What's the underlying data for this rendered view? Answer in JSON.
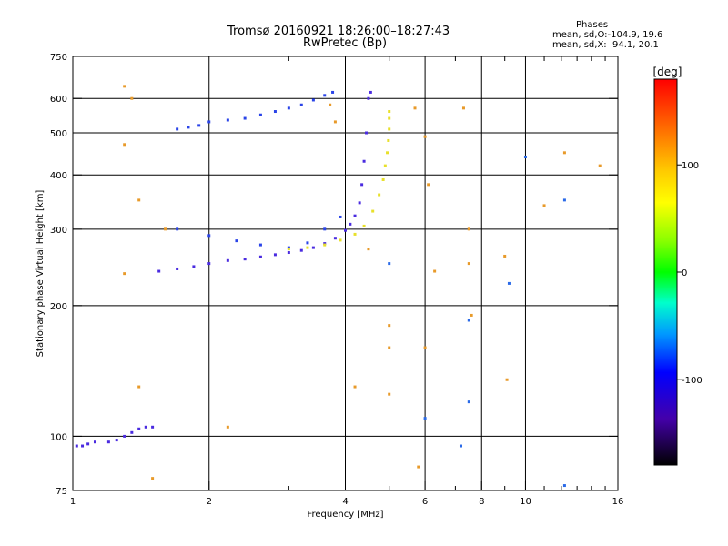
{
  "title": "Tromsø 20160921 18:26:00–18:27:43",
  "subtitle": "RwPretec (Bp)",
  "phases": {
    "heading": "Phases",
    "line_o": "mean, sd,O:-104.9, 19.6",
    "line_x": "mean, sd,X:  94.1, 20.1"
  },
  "chart_data": {
    "type": "scatter",
    "xlabel": "Frequency [MHz]",
    "ylabel": "Stationary phase Virtual Height [km]",
    "xscale": "log",
    "yscale": "log",
    "xlim": [
      1,
      16
    ],
    "ylim": [
      75,
      750
    ],
    "xticks": [
      1,
      2,
      4,
      6,
      8,
      10,
      16
    ],
    "xtick_labels": [
      "1",
      "2",
      "4",
      "6",
      "8",
      "10",
      "16"
    ],
    "xgrid": [
      2,
      4,
      6,
      8,
      10
    ],
    "xminor": [
      3,
      5,
      7,
      9,
      11,
      12,
      13,
      14,
      15
    ],
    "yticks": [
      75,
      100,
      200,
      300,
      400,
      500,
      600,
      750
    ],
    "ytick_labels": [
      "75",
      "100",
      "200",
      "300",
      "400",
      "500",
      "600",
      "750"
    ],
    "ygrid": [
      100,
      200,
      300,
      400,
      500,
      600
    ],
    "grid": true,
    "colorbar": {
      "label": "[deg]",
      "range": [
        -180,
        180
      ],
      "ticks": [
        100,
        0,
        -100
      ],
      "tick_labels": [
        "100",
        "0",
        "-100"
      ]
    },
    "series": [
      {
        "trace": "O-mode lower",
        "color": "#4a2be0",
        "points": [
          [
            1.02,
            95
          ],
          [
            1.05,
            95
          ],
          [
            1.08,
            96
          ],
          [
            1.12,
            97
          ],
          [
            1.2,
            97
          ],
          [
            1.25,
            98
          ],
          [
            1.3,
            100
          ],
          [
            1.35,
            102
          ],
          [
            1.4,
            104
          ],
          [
            1.45,
            105
          ],
          [
            1.5,
            105
          ],
          [
            1.55,
            240
          ],
          [
            1.7,
            243
          ],
          [
            1.85,
            246
          ],
          [
            2.0,
            250
          ],
          [
            2.2,
            254
          ],
          [
            2.4,
            256
          ],
          [
            2.6,
            259
          ],
          [
            2.8,
            262
          ],
          [
            3.0,
            265
          ],
          [
            3.2,
            268
          ],
          [
            3.4,
            272
          ],
          [
            3.6,
            278
          ],
          [
            3.8,
            286
          ],
          [
            4.0,
            298
          ],
          [
            4.1,
            308
          ],
          [
            4.2,
            322
          ],
          [
            4.3,
            345
          ],
          [
            4.35,
            380
          ],
          [
            4.4,
            430
          ],
          [
            4.45,
            500
          ],
          [
            4.5,
            600
          ],
          [
            4.55,
            620
          ]
        ]
      },
      {
        "trace": "O-mode upper",
        "color": "#2a44e8",
        "points": [
          [
            1.7,
            510
          ],
          [
            1.8,
            515
          ],
          [
            1.9,
            520
          ],
          [
            2.0,
            530
          ],
          [
            2.2,
            535
          ],
          [
            2.4,
            540
          ],
          [
            2.6,
            550
          ],
          [
            2.8,
            560
          ],
          [
            3.0,
            570
          ],
          [
            3.2,
            580
          ],
          [
            3.4,
            595
          ],
          [
            3.6,
            610
          ],
          [
            3.75,
            620
          ],
          [
            1.7,
            300
          ],
          [
            2.0,
            290
          ],
          [
            2.3,
            282
          ],
          [
            2.6,
            276
          ],
          [
            3.0,
            272
          ],
          [
            3.3,
            279
          ],
          [
            3.6,
            300
          ],
          [
            3.9,
            320
          ]
        ]
      },
      {
        "trace": "X-mode",
        "color": "#e8e02a",
        "points": [
          [
            3.0,
            270
          ],
          [
            3.3,
            272
          ],
          [
            3.6,
            276
          ],
          [
            3.9,
            283
          ],
          [
            4.2,
            292
          ],
          [
            4.4,
            305
          ],
          [
            4.6,
            330
          ],
          [
            4.75,
            360
          ],
          [
            4.85,
            390
          ],
          [
            4.9,
            420
          ],
          [
            4.95,
            450
          ],
          [
            4.98,
            480
          ],
          [
            5.0,
            510
          ],
          [
            5.0,
            540
          ],
          [
            5.0,
            560
          ]
        ]
      },
      {
        "trace": "scattered",
        "color": "#e89a2a",
        "points": [
          [
            1.3,
            640
          ],
          [
            1.35,
            600
          ],
          [
            1.3,
            470
          ],
          [
            1.4,
            350
          ],
          [
            1.3,
            237
          ],
          [
            1.4,
            130
          ],
          [
            1.5,
            80
          ],
          [
            1.6,
            300
          ],
          [
            2.2,
            105
          ],
          [
            3.7,
            580
          ],
          [
            3.8,
            530
          ],
          [
            4.2,
            130
          ],
          [
            4.5,
            270
          ],
          [
            5.0,
            180
          ],
          [
            5.0,
            160
          ],
          [
            5.0,
            125
          ],
          [
            5.7,
            570
          ],
          [
            6.0,
            490
          ],
          [
            6.0,
            160
          ],
          [
            6.1,
            380
          ],
          [
            6.3,
            240
          ],
          [
            7.3,
            570
          ],
          [
            7.5,
            300
          ],
          [
            7.5,
            250
          ],
          [
            7.6,
            190
          ],
          [
            9.0,
            260
          ],
          [
            9.1,
            135
          ],
          [
            11.0,
            340
          ],
          [
            12.2,
            450
          ],
          [
            14.6,
            420
          ],
          [
            5.8,
            85
          ]
        ]
      },
      {
        "trace": "scattered blue",
        "color": "#2a6ae8",
        "points": [
          [
            6.0,
            110
          ],
          [
            7.2,
            95
          ],
          [
            7.5,
            120
          ],
          [
            7.5,
            185
          ],
          [
            9.2,
            225
          ],
          [
            10.0,
            440
          ],
          [
            12.2,
            350
          ],
          [
            12.2,
            77
          ],
          [
            5.0,
            250
          ]
        ]
      }
    ]
  }
}
